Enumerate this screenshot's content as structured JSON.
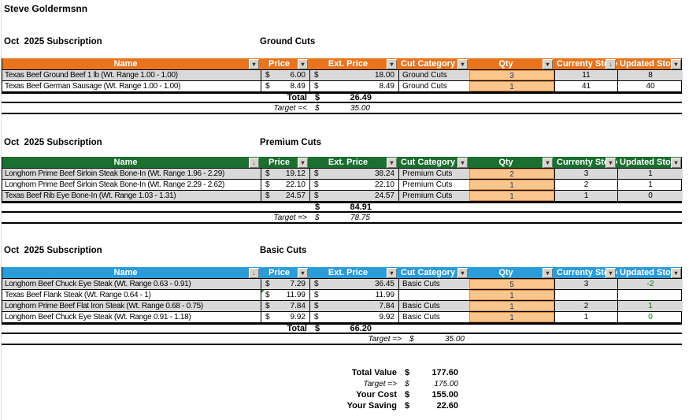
{
  "customer_name": "Steve Goldermsnn",
  "currency_symbol": "$",
  "colors": {
    "ground_accent": "#E8741D",
    "premium_accent": "#1B6F2F",
    "basic_accent": "#2B9CD8",
    "qty_cell_fill": "#FBC58E",
    "row_stripe": "#D9D9D9",
    "qty_text": "#203764",
    "positive_stock_text": "#008000"
  },
  "icons": {
    "dropdown-arrow": "▾",
    "sort": "↓"
  },
  "sections": [
    {
      "subscription_label": "Oct  2025 Subscription",
      "category_label": "Ground Cuts",
      "accent": "#E8741D",
      "columns": [
        {
          "label": "Name",
          "icon": "dropdown-arrow"
        },
        {
          "label": "Price",
          "icon": "dropdown-arrow"
        },
        {
          "label": "Ext. Price",
          "icon": "dropdown-arrow"
        },
        {
          "label": "Cut Category",
          "icon": "dropdown-arrow"
        },
        {
          "label": "Qty",
          "icon": "dropdown-arrow"
        },
        {
          "label": "Currenty Stock",
          "icon": "sort"
        },
        {
          "label": "Updated Stock",
          "icon": "dropdown-arrow"
        }
      ],
      "rows": [
        {
          "name": "Texas Beef Ground Beef 1 lb (Wt. Range 1.00 - 1.00)",
          "price": "6.00",
          "ext_price": "18.00",
          "cut_category": "Ground Cuts",
          "qty": "3",
          "current_stock": "11",
          "updated_stock": "8"
        },
        {
          "name": "Texas Beef German Sausage (Wt. Range 1.00 - 1.00)",
          "price": "8.49",
          "ext_price": "8.49",
          "cut_category": "Ground Cuts",
          "qty": "1",
          "current_stock": "41",
          "updated_stock": "40"
        }
      ],
      "total_label": "Total",
      "total_value": "26.49",
      "target_label": "Target =<",
      "target_value": "35.00"
    },
    {
      "subscription_label": "Oct  2025 Subscription",
      "category_label": "Premium Cuts",
      "accent": "#1B6F2F",
      "columns": [
        {
          "label": "Name",
          "icon": "sort"
        },
        {
          "label": "Price",
          "icon": "dropdown-arrow"
        },
        {
          "label": "Ext. Price",
          "icon": "dropdown-arrow"
        },
        {
          "label": "Cut Category",
          "icon": "dropdown-arrow"
        },
        {
          "label": "Qty",
          "icon": "dropdown-arrow"
        },
        {
          "label": "Currenty Stock",
          "icon": "dropdown-arrow"
        },
        {
          "label": "Updated Stock",
          "icon": "dropdown-arrow"
        }
      ],
      "rows": [
        {
          "name": "Longhorn Prime Beef Sirloin Steak Bone-In (Wt. Range 1.96 - 2.29)",
          "price": "19.12",
          "ext_price": "38.24",
          "cut_category": "Premium Cuts",
          "qty": "2",
          "current_stock": "3",
          "updated_stock": "1"
        },
        {
          "name": "Longhorn Prime Beef Sirloin Steak Bone-In (Wt. Range 2.29 - 2.62)",
          "price": "22.10",
          "ext_price": "22.10",
          "cut_category": "Premium Cuts",
          "qty": "1",
          "current_stock": "2",
          "updated_stock": "1"
        },
        {
          "name": "Texas Beef Rib Eye Bone-In (Wt. Range 1.03 - 1.31)",
          "price": "24.57",
          "ext_price": "24.57",
          "cut_category": "Premium Cuts",
          "qty": "1",
          "current_stock": "1",
          "updated_stock": "0"
        }
      ],
      "total_label": "",
      "total_value": "84.91",
      "target_label": "Target =>",
      "target_value": "78.75"
    },
    {
      "subscription_label": "Oct  2025 Subscription",
      "category_label": "Basic Cuts",
      "accent": "#2B9CD8",
      "columns": [
        {
          "label": "Name",
          "icon": "sort"
        },
        {
          "label": "Price",
          "icon": "dropdown-arrow"
        },
        {
          "label": "Ext. Price",
          "icon": "dropdown-arrow"
        },
        {
          "label": "Cut Category",
          "icon": "dropdown-arrow"
        },
        {
          "label": "Qty",
          "icon": "dropdown-arrow"
        },
        {
          "label": "Currenty Stock",
          "icon": "dropdown-arrow"
        },
        {
          "label": "Updated Stock",
          "icon": "dropdown-arrow"
        }
      ],
      "rows": [
        {
          "name": "Longhorn Beef Chuck Eye Steak (Wt. Range 0.63 - 0.91)",
          "price": "7.29",
          "ext_price": "36.45",
          "cut_category": "Basic Cuts",
          "qty": "5",
          "current_stock": "3",
          "updated_stock": "-2"
        },
        {
          "name": "Texas Beef Flank Steak (Wt. Range 0.64 - 1)",
          "price": "11.99",
          "ext_price": "11.99",
          "cut_category": "",
          "qty": "1",
          "current_stock": "",
          "updated_stock": "",
          "note_indicator": true
        },
        {
          "name": "Longhorn Prime Beef Flat Iron Steak (Wt. Range 0.68 - 0.75)",
          "price": "7.84",
          "ext_price": "7.84",
          "cut_category": "Basic Cuts",
          "qty": "1",
          "current_stock": "2",
          "updated_stock": "1"
        },
        {
          "name": "Longhorn Beef Chuck Eye Steak (Wt. Range 0.91 - 1.18)",
          "price": "9.92",
          "ext_price": "9.92",
          "cut_category": "Basic Cuts",
          "qty": "1",
          "current_stock": "1",
          "updated_stock": "0"
        }
      ],
      "total_label": "Total",
      "total_value": "66.20",
      "target_label": "Target =>",
      "target_value": "35.00"
    }
  ],
  "summary": {
    "rows": [
      {
        "label": "Total Value",
        "value": "177.60",
        "style": "bold"
      },
      {
        "label": "Target =>",
        "value": "175.00",
        "style": "italic"
      },
      {
        "label": "Your Cost",
        "value": "155.00",
        "style": "bold"
      },
      {
        "label": "Your Saving",
        "value": "22.60",
        "style": "bold"
      }
    ]
  }
}
